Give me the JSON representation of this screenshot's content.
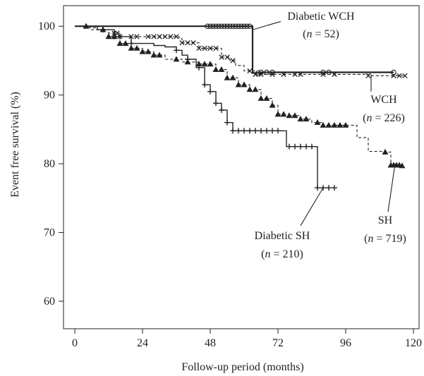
{
  "chart_data": {
    "type": "line",
    "title": "",
    "xlabel": "Follow-up period (months)",
    "ylabel": "Event free survival (%)",
    "xlim": [
      -4,
      122
    ],
    "ylim": [
      56,
      103
    ],
    "xticks": [
      0,
      24,
      48,
      72,
      96,
      120
    ],
    "yticks": [
      60,
      70,
      80,
      90,
      100
    ],
    "grid": false,
    "series": [
      {
        "name": "Diabetic WCH",
        "marker": "circle",
        "line": "solid-bold",
        "points": [
          [
            0,
            100
          ],
          [
            8,
            100
          ],
          [
            16,
            100
          ],
          [
            24,
            100
          ],
          [
            32,
            100
          ],
          [
            40,
            100
          ],
          [
            47,
            100
          ],
          [
            50,
            100
          ],
          [
            52,
            100
          ],
          [
            54,
            100
          ],
          [
            56,
            100
          ],
          [
            58,
            100
          ],
          [
            60,
            100
          ],
          [
            62,
            100
          ],
          [
            63,
            100
          ],
          [
            63,
            93.2
          ],
          [
            66,
            93.3
          ],
          [
            70,
            93.3
          ],
          [
            76,
            93.3
          ],
          [
            82,
            93.3
          ],
          [
            90,
            93.3
          ],
          [
            98,
            93.3
          ],
          [
            104,
            93.3
          ],
          [
            110,
            93.3
          ],
          [
            113,
            93.3
          ]
        ],
        "marker_x": [
          47,
          48,
          49,
          50,
          51,
          52,
          53,
          54,
          55,
          56,
          57,
          58,
          59,
          60,
          61,
          62,
          65,
          66,
          68,
          70,
          88,
          90,
          113
        ]
      },
      {
        "name": "WCH",
        "marker": "x",
        "line": "dashed",
        "points": [
          [
            0,
            100
          ],
          [
            4,
            99.8
          ],
          [
            8,
            99.5
          ],
          [
            12,
            99
          ],
          [
            16,
            98.5
          ],
          [
            20,
            98.5
          ],
          [
            28,
            98.5
          ],
          [
            34,
            98.5
          ],
          [
            37,
            98.2
          ],
          [
            38,
            97.6
          ],
          [
            42,
            97.6
          ],
          [
            44,
            96.8
          ],
          [
            50,
            96.8
          ],
          [
            52,
            95.5
          ],
          [
            55,
            95
          ],
          [
            57,
            94.3
          ],
          [
            60,
            93.5
          ],
          [
            64,
            93
          ],
          [
            80,
            93
          ],
          [
            100,
            93
          ],
          [
            104,
            93
          ],
          [
            104,
            92.8
          ],
          [
            112,
            92.8
          ],
          [
            117,
            92.8
          ]
        ],
        "marker_x": [
          14,
          15,
          16,
          20,
          22,
          26,
          28,
          30,
          32,
          34,
          36,
          38,
          40,
          42,
          44,
          46,
          48,
          50,
          52,
          54,
          56,
          62,
          64,
          66,
          70,
          74,
          78,
          80,
          88,
          92,
          104,
          113,
          115,
          117
        ]
      },
      {
        "name": "SH",
        "marker": "triangle",
        "line": "dashed",
        "points": [
          [
            0,
            100
          ],
          [
            6,
            99.5
          ],
          [
            12,
            98.5
          ],
          [
            16,
            97.5
          ],
          [
            20,
            96.8
          ],
          [
            24,
            96.3
          ],
          [
            28,
            95.8
          ],
          [
            32,
            95.2
          ],
          [
            38,
            94.8
          ],
          [
            44,
            94.5
          ],
          [
            50,
            93.7
          ],
          [
            54,
            92.5
          ],
          [
            58,
            91.5
          ],
          [
            62,
            90.8
          ],
          [
            66,
            89.5
          ],
          [
            70,
            88.5
          ],
          [
            72,
            87.2
          ],
          [
            76,
            87
          ],
          [
            80,
            86.5
          ],
          [
            84,
            86
          ],
          [
            88,
            85.6
          ],
          [
            96,
            85.6
          ],
          [
            100,
            85.6
          ],
          [
            100,
            83.8
          ],
          [
            104,
            83.6
          ],
          [
            104,
            81.8
          ],
          [
            110,
            81.7
          ],
          [
            112,
            79.8
          ],
          [
            116,
            79.7
          ]
        ],
        "marker_x": [
          4,
          10,
          12,
          14,
          16,
          18,
          20,
          22,
          24,
          26,
          28,
          30,
          36,
          40,
          44,
          46,
          48,
          50,
          52,
          54,
          56,
          58,
          60,
          62,
          64,
          66,
          68,
          70,
          72,
          74,
          76,
          78,
          80,
          82,
          86,
          88,
          90,
          92,
          94,
          96,
          110,
          112,
          113,
          114,
          115,
          116
        ]
      },
      {
        "name": "Diabetic SH",
        "marker": "plus",
        "line": "solid",
        "points": [
          [
            0,
            100
          ],
          [
            8,
            99.5
          ],
          [
            14,
            98.5
          ],
          [
            20,
            97.5
          ],
          [
            28,
            97.2
          ],
          [
            32,
            97
          ],
          [
            36,
            96.5
          ],
          [
            38,
            95.8
          ],
          [
            40,
            95.2
          ],
          [
            43,
            94
          ],
          [
            46,
            91.5
          ],
          [
            48,
            90.5
          ],
          [
            50,
            88.8
          ],
          [
            52,
            87.8
          ],
          [
            54,
            86
          ],
          [
            56,
            84.8
          ],
          [
            64,
            84.8
          ],
          [
            72,
            84.8
          ],
          [
            75,
            84.8
          ],
          [
            75,
            82.5
          ],
          [
            80,
            82.5
          ],
          [
            86,
            82.5
          ],
          [
            86,
            76.5
          ],
          [
            90,
            76.5
          ],
          [
            92,
            76.5
          ]
        ],
        "marker_x": [
          10,
          14,
          16,
          20,
          36,
          40,
          44,
          46,
          48,
          50,
          52,
          54,
          56,
          58,
          60,
          62,
          64,
          66,
          68,
          70,
          72,
          76,
          78,
          80,
          82,
          84,
          86,
          88,
          90,
          92
        ]
      }
    ],
    "annotations": [
      {
        "id": "diabetic-wch",
        "name": "Diabetic WCH",
        "n": "52",
        "line_from": [
          63,
          99.5
        ],
        "line_to": [
          73,
          100.7
        ]
      },
      {
        "id": "wch",
        "name": "WCH",
        "n": "226",
        "line_from": [
          105,
          93
        ],
        "line_to": [
          105,
          90.5
        ]
      },
      {
        "id": "sh",
        "name": "SH",
        "n": "719",
        "line_from": [
          113.5,
          80
        ],
        "line_to": [
          111,
          73
        ]
      },
      {
        "id": "diabetic-sh",
        "name": "Diabetic SH",
        "n": "210",
        "line_from": [
          88,
          76.5
        ],
        "line_to": [
          80,
          71
        ]
      }
    ]
  }
}
